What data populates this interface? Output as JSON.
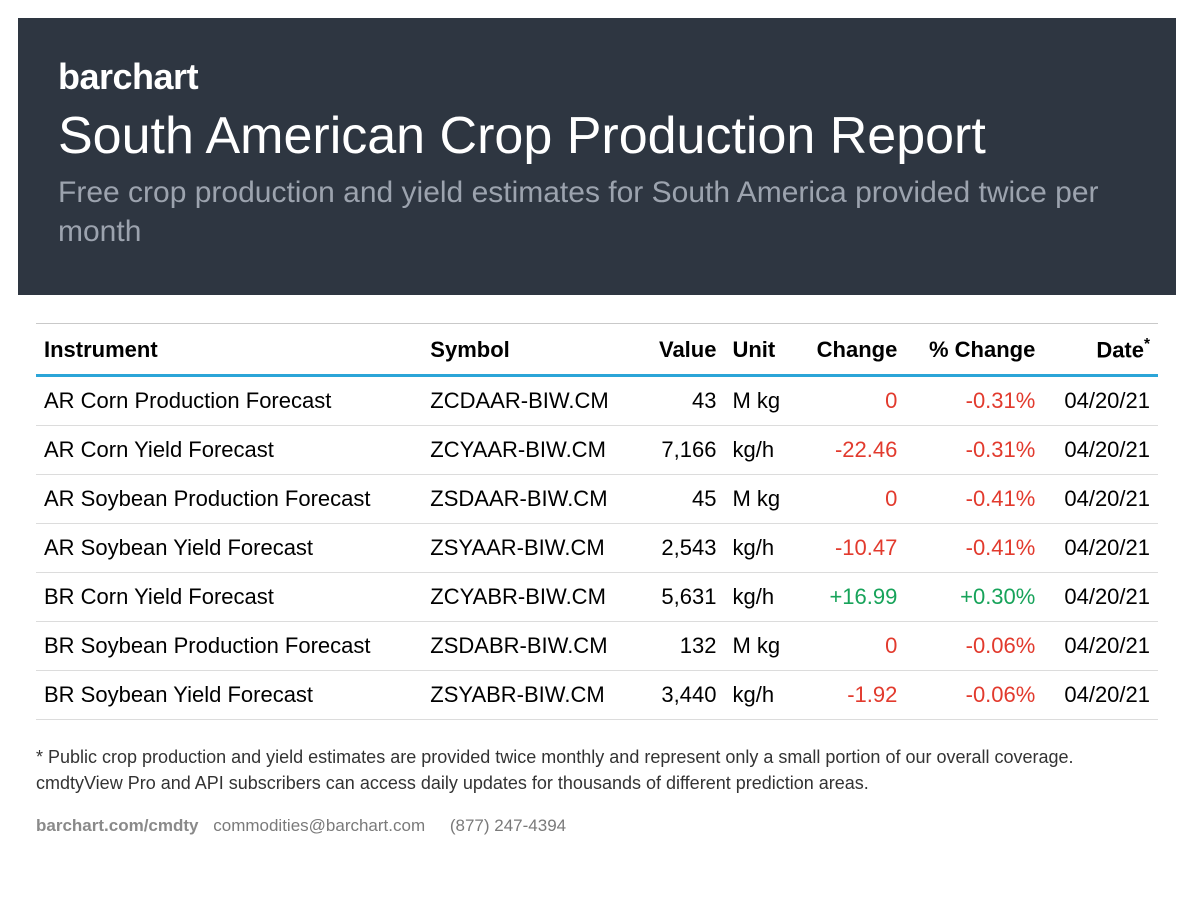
{
  "header": {
    "logo": "barchart",
    "title": "South American Crop Production Report",
    "subtitle": "Free crop production and yield estimates for South America provided twice per month",
    "background_color": "#2e3641",
    "title_color": "#ffffff",
    "subtitle_color": "#9ca3ae",
    "title_fontsize": 52,
    "subtitle_fontsize": 30
  },
  "table": {
    "header_border_color": "#2ba5d8",
    "row_border_color": "#dcdcdc",
    "negative_color": "#e23a2d",
    "positive_color": "#17a35a",
    "fontsize": 22,
    "columns": [
      {
        "label": "Instrument",
        "align": "left"
      },
      {
        "label": "Symbol",
        "align": "left"
      },
      {
        "label": "Value",
        "align": "right"
      },
      {
        "label": "Unit",
        "align": "left"
      },
      {
        "label": "Change",
        "align": "right"
      },
      {
        "label": "% Change",
        "align": "right"
      },
      {
        "label": "Date*",
        "align": "right"
      }
    ],
    "rows": [
      {
        "instrument": "AR Corn Production Forecast",
        "symbol": "ZCDAAR-BIW.CM",
        "value": "43",
        "unit": "M kg",
        "change": "0",
        "change_sign": "neg",
        "pct_change": "-0.31%",
        "pct_sign": "neg",
        "date": "04/20/21"
      },
      {
        "instrument": "AR Corn Yield Forecast",
        "symbol": "ZCYAAR-BIW.CM",
        "value": "7,166",
        "unit": "kg/h",
        "change": "-22.46",
        "change_sign": "neg",
        "pct_change": "-0.31%",
        "pct_sign": "neg",
        "date": "04/20/21"
      },
      {
        "instrument": "AR Soybean Production Forecast",
        "symbol": "ZSDAAR-BIW.CM",
        "value": "45",
        "unit": "M kg",
        "change": "0",
        "change_sign": "neg",
        "pct_change": "-0.41%",
        "pct_sign": "neg",
        "date": "04/20/21"
      },
      {
        "instrument": "AR Soybean Yield Forecast",
        "symbol": "ZSYAAR-BIW.CM",
        "value": "2,543",
        "unit": "kg/h",
        "change": "-10.47",
        "change_sign": "neg",
        "pct_change": "-0.41%",
        "pct_sign": "neg",
        "date": "04/20/21"
      },
      {
        "instrument": "BR Corn Yield Forecast",
        "symbol": "ZCYABR-BIW.CM",
        "value": "5,631",
        "unit": "kg/h",
        "change": "+16.99",
        "change_sign": "pos",
        "pct_change": "+0.30%",
        "pct_sign": "pos",
        "date": "04/20/21"
      },
      {
        "instrument": "BR Soybean Production Forecast",
        "symbol": "ZSDABR-BIW.CM",
        "value": "132",
        "unit": "M kg",
        "change": "0",
        "change_sign": "neg",
        "pct_change": "-0.06%",
        "pct_sign": "neg",
        "date": "04/20/21"
      },
      {
        "instrument": "BR Soybean Yield Forecast",
        "symbol": "ZSYABR-BIW.CM",
        "value": "3,440",
        "unit": "kg/h",
        "change": "-1.92",
        "change_sign": "neg",
        "pct_change": "-0.06%",
        "pct_sign": "neg",
        "date": "04/20/21"
      }
    ]
  },
  "footnote": "* Public crop production and yield estimates are provided twice monthly and represent only a small portion of our overall coverage. cmdtyView Pro and API subscribers can access daily updates for thousands of different prediction areas.",
  "footer": {
    "site": "barchart.com/cmdty",
    "email": "commodities@barchart.com",
    "phone": "(877) 247-4394"
  }
}
